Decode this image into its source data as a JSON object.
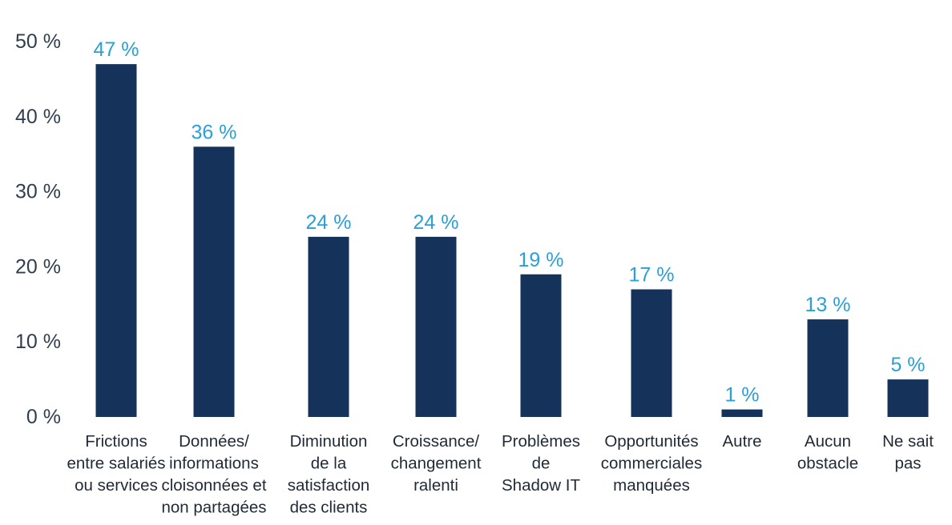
{
  "chart_data": {
    "type": "bar",
    "title": "",
    "xlabel": "",
    "ylabel": "",
    "ylim": [
      0,
      50
    ],
    "yticks": [
      "0 %",
      "10 %",
      "20 %",
      "30 %",
      "40 %",
      "50 %"
    ],
    "grid": false,
    "legend": "none",
    "categories": [
      [
        "Frictions",
        "entre salariés",
        "ou services"
      ],
      [
        "Données/",
        "informations",
        "cloisonnées et",
        "non partagées"
      ],
      [
        "Diminution",
        "de la",
        "satisfaction",
        "des clients"
      ],
      [
        "Croissance/",
        "changement",
        "ralenti"
      ],
      [
        "Problèmes",
        "de",
        "Shadow IT"
      ],
      [
        "Opportunités",
        "commerciales",
        "manquées"
      ],
      [
        "Autre"
      ],
      [
        "Aucun",
        "obstacle"
      ],
      [
        "Ne sait",
        "pas"
      ]
    ],
    "values": [
      47,
      36,
      24,
      24,
      19,
      17,
      1,
      13,
      5
    ],
    "value_labels": [
      "47 %",
      "36 %",
      "24 %",
      "24 %",
      "19 %",
      "17 %",
      "1 %",
      "13 %",
      "5 %"
    ],
    "colors": {
      "bar": "#14325a",
      "value_label": "#2b9fd9",
      "axis_text": "#2f3e4e"
    }
  }
}
